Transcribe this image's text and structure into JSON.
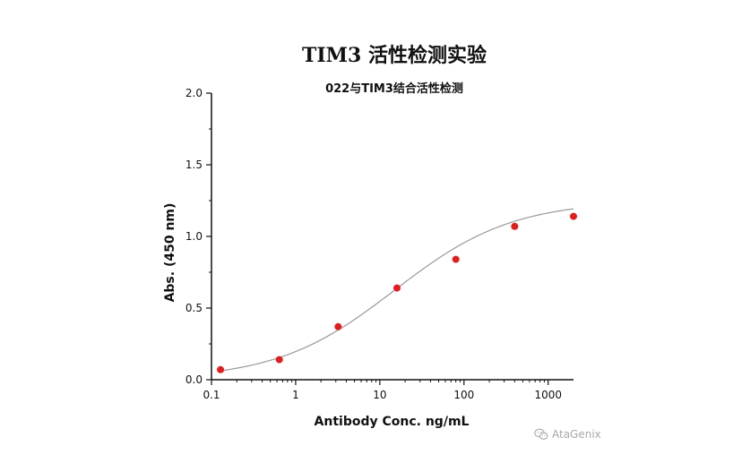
{
  "chart_data": {
    "type": "scatter",
    "title": "TIM3 活性检测实验",
    "subtitle": "022与TIM3结合活性检测",
    "xlabel": "Antibody Conc. ng/mL",
    "ylabel": "Abs. (450 nm)",
    "x_scale": "log",
    "xlim": [
      0.1,
      2000
    ],
    "ylim": [
      0,
      2.0
    ],
    "x_ticks": [
      0.1,
      1,
      10,
      100,
      1000
    ],
    "x_tick_labels": [
      "0.1",
      "1",
      "10",
      "100",
      "1000"
    ],
    "y_ticks": [
      0,
      0.5,
      1.0,
      1.5,
      2.0
    ],
    "y_tick_labels": [
      "0.0",
      "0.5",
      "1.0",
      "1.5",
      "2.0"
    ],
    "grid": false,
    "series": [
      {
        "x": [
          0.128,
          0.64,
          3.2,
          16,
          80,
          400,
          2000
        ],
        "y": [
          0.07,
          0.14,
          0.37,
          0.64,
          0.84,
          1.07,
          1.14
        ],
        "color": "#e01e1e",
        "fit_curve": true,
        "fit_color": "#999999"
      }
    ]
  },
  "watermark": {
    "text": "AtaGenix",
    "icon": "wechat-icon"
  }
}
